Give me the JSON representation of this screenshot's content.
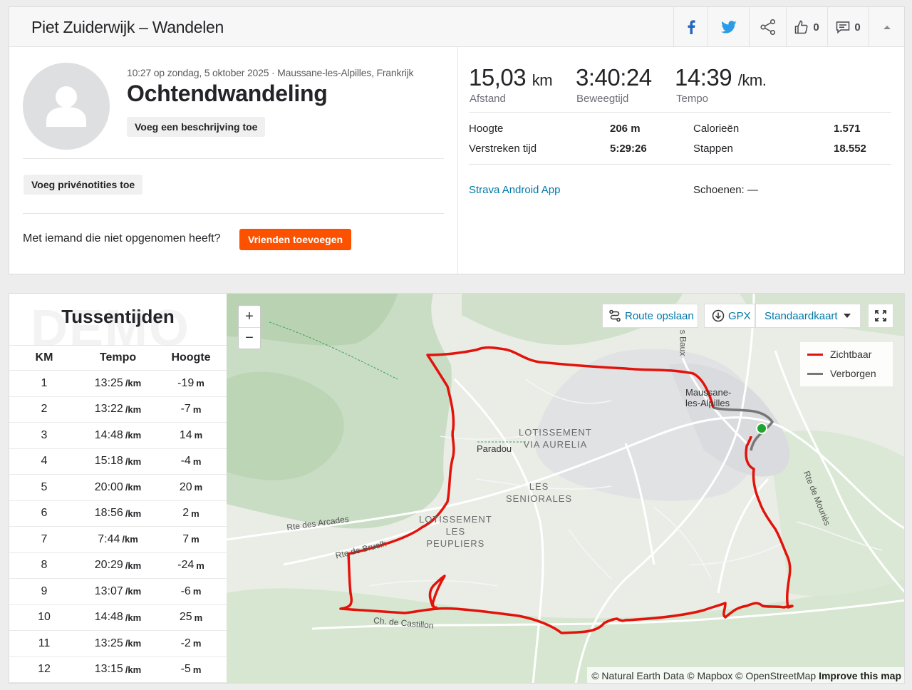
{
  "header": {
    "title": "Piet Zuiderwijk – Wandelen",
    "kudos_count": "0",
    "comments_count": "0"
  },
  "activity": {
    "meta": "10:27 op zondag, 5 oktober 2025 · Maussane-les-Alpilles, Frankrijk",
    "name": "Ochtendwandeling",
    "add_description": "Voeg een beschrijving toe",
    "add_private_notes": "Voeg privénotities toe",
    "invite_text": "Met iemand die niet opgenomen heeft?",
    "add_friends": "Vrienden toevoegen"
  },
  "stats": {
    "distance_value": "15,03",
    "distance_unit": "km",
    "distance_label": "Afstand",
    "moving_time_value": "3:40:24",
    "moving_time_label": "Beweegtijd",
    "pace_value": "14:39",
    "pace_unit": "/km.",
    "pace_label": "Tempo",
    "elevation_label": "Hoogte",
    "elevation_value": "206 m",
    "calories_label": "Calorieën",
    "calories_value": "1.571",
    "elapsed_label": "Verstreken tijd",
    "elapsed_value": "5:29:26",
    "steps_label": "Stappen",
    "steps_value": "18.552",
    "device": "Strava Android App",
    "shoes": "Schoenen: —"
  },
  "splits": {
    "title": "Tussentijden",
    "watermark": "DEMO",
    "col_km": "KM",
    "col_pace": "Tempo",
    "col_elev": "Hoogte",
    "pace_unit": "/km",
    "elev_unit": "m",
    "rows": [
      {
        "km": "1",
        "pace": "13:25",
        "elev": "-19"
      },
      {
        "km": "2",
        "pace": "13:22",
        "elev": "-7"
      },
      {
        "km": "3",
        "pace": "14:48",
        "elev": "14"
      },
      {
        "km": "4",
        "pace": "15:18",
        "elev": "-4"
      },
      {
        "km": "5",
        "pace": "20:00",
        "elev": "20"
      },
      {
        "km": "6",
        "pace": "18:56",
        "elev": "2"
      },
      {
        "km": "7",
        "pace": "7:44",
        "elev": "7"
      },
      {
        "km": "8",
        "pace": "20:29",
        "elev": "-24"
      },
      {
        "km": "9",
        "pace": "13:07",
        "elev": "-6"
      },
      {
        "km": "10",
        "pace": "14:48",
        "elev": "25"
      },
      {
        "km": "11",
        "pace": "13:25",
        "elev": "-2"
      },
      {
        "km": "12",
        "pace": "13:15",
        "elev": "-5"
      }
    ]
  },
  "map": {
    "save_route": "Route opslaan",
    "gpx": "GPX",
    "map_style": "Standaardkaart",
    "legend_visible": "Zichtbaar",
    "legend_hidden": "Verborgen",
    "route_color": "#e3120b",
    "hidden_color": "#777777",
    "start_color": "#1fa52d",
    "attribution_text": "© Natural Earth Data © Mapbox © OpenStreetMap",
    "attribution_link": "Improve this map",
    "labels": {
      "paradou": "Paradou",
      "maussane_1": "Maussane-",
      "maussane_2": "les-Alpilles",
      "lotissement_aurelia_1": "LOTISSEMENT",
      "lotissement_aurelia_2": "VIA AURELIA",
      "seniorales_1": "LES",
      "seniorales_2": "SENIORALES",
      "peupliers_1": "LOTISSEMENT",
      "peupliers_2": "LES",
      "peupliers_3": "PEUPLIERS",
      "rte_arcades": "Rte des Arcades",
      "rte_bruelh": "Rte de Bruelh",
      "ch_castillon": "Ch. de Castillon",
      "rte_mouries": "Rte de Mouriès",
      "baux": "s Baux"
    }
  }
}
